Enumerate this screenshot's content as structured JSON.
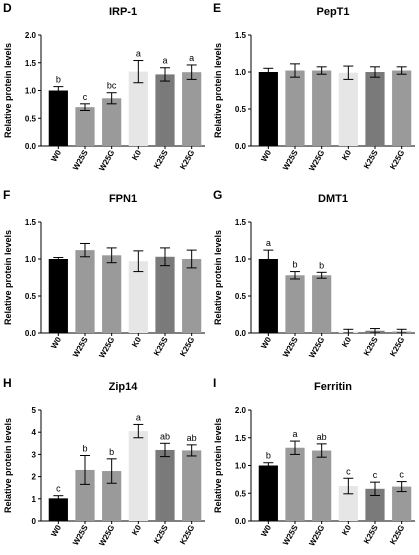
{
  "figure": {
    "categories": [
      "W0",
      "W25S",
      "W25G",
      "K0",
      "K25S",
      "K25G"
    ],
    "bar_colors": [
      "#000000",
      "#9a9a9a",
      "#9a9a9a",
      "#e6e6e6",
      "#7a7a7a",
      "#9a9a9a"
    ],
    "ylabel": "Relative protein levels"
  },
  "chart_data": [
    {
      "panel_letter": "D",
      "title": "IRP-1",
      "type": "bar",
      "categories": [
        "W0",
        "W25S",
        "W25G",
        "K0",
        "K25S",
        "K25G"
      ],
      "values": [
        1.0,
        0.7,
        0.86,
        1.34,
        1.29,
        1.33
      ],
      "errors": [
        0.07,
        0.06,
        0.1,
        0.2,
        0.12,
        0.13
      ],
      "labels": [
        "b",
        "c",
        "bc",
        "a",
        "a",
        "a"
      ],
      "ylim": [
        0,
        2.0
      ],
      "yticks": [
        "0.0",
        "0.5",
        "1.0",
        "1.5",
        "2.0"
      ]
    },
    {
      "panel_letter": "E",
      "title": "PepT1",
      "type": "bar",
      "categories": [
        "W0",
        "W25S",
        "W25G",
        "K0",
        "K25S",
        "K25G"
      ],
      "values": [
        1.0,
        1.02,
        1.02,
        0.99,
        1.0,
        1.02
      ],
      "errors": [
        0.05,
        0.09,
        0.05,
        0.09,
        0.07,
        0.05
      ],
      "labels": [
        "",
        "",
        "",
        "",
        "",
        ""
      ],
      "ylim": [
        0,
        1.5
      ],
      "yticks": [
        "0.0",
        "0.5",
        "1.0",
        "1.5"
      ]
    },
    {
      "panel_letter": "F",
      "title": "FPN1",
      "type": "bar",
      "categories": [
        "W0",
        "W25S",
        "W25G",
        "K0",
        "K25S",
        "K25G"
      ],
      "values": [
        1.0,
        1.12,
        1.05,
        0.97,
        1.03,
        1.0
      ],
      "errors": [
        0.02,
        0.09,
        0.1,
        0.14,
        0.12,
        0.12
      ],
      "labels": [
        "",
        "",
        "",
        "",
        "",
        ""
      ],
      "ylim": [
        0,
        1.5
      ],
      "yticks": [
        "0.0",
        "0.5",
        "1.0",
        "1.5"
      ]
    },
    {
      "panel_letter": "G",
      "title": "DMT1",
      "type": "bar",
      "categories": [
        "W0",
        "W25S",
        "W25G",
        "K0",
        "K25S",
        "K25G"
      ],
      "values": [
        1.0,
        0.78,
        0.78,
        0.02,
        0.03,
        0.02
      ],
      "errors": [
        0.12,
        0.05,
        0.04,
        0.03,
        0.03,
        0.03
      ],
      "labels": [
        "a",
        "b",
        "b",
        "",
        "",
        ""
      ],
      "ylim": [
        0,
        1.5
      ],
      "yticks": [
        "0.0",
        "0.5",
        "1.0",
        "1.5"
      ]
    },
    {
      "panel_letter": "H",
      "title": "Zip14",
      "type": "bar",
      "categories": [
        "W0",
        "W25S",
        "W25G",
        "K0",
        "K25S",
        "K25G"
      ],
      "values": [
        1.02,
        2.3,
        2.25,
        4.05,
        3.2,
        3.18
      ],
      "errors": [
        0.12,
        0.65,
        0.55,
        0.3,
        0.3,
        0.25
      ],
      "labels": [
        "c",
        "b",
        "b",
        "a",
        "ab",
        "ab"
      ],
      "ylim": [
        0,
        5
      ],
      "yticks": [
        "0",
        "1",
        "2",
        "3",
        "4",
        "5"
      ]
    },
    {
      "panel_letter": "I",
      "title": "Ferritin",
      "type": "bar",
      "categories": [
        "W0",
        "W25S",
        "W25G",
        "K0",
        "K25S",
        "K25G"
      ],
      "values": [
        1.0,
        1.32,
        1.27,
        0.63,
        0.58,
        0.62
      ],
      "errors": [
        0.05,
        0.12,
        0.12,
        0.14,
        0.12,
        0.09
      ],
      "labels": [
        "b",
        "a",
        "ab",
        "c",
        "c",
        "c"
      ],
      "ylim": [
        0,
        2.0
      ],
      "yticks": [
        "0.0",
        "0.5",
        "1.0",
        "1.5",
        "2.0"
      ]
    }
  ]
}
